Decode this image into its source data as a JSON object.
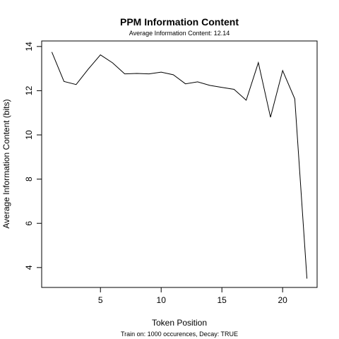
{
  "chart_data": {
    "type": "line",
    "title": "PPM Information Content",
    "subtitle": "Average Information Content: 12.14",
    "xlabel": "Token Position",
    "ylabel": "Average Information Content (bits)",
    "footnote": "Train on: 1000 occurences, Decay: TRUE",
    "xlim": [
      0.16,
      22.84
    ],
    "ylim": [
      3.1,
      14.25
    ],
    "xticks": [
      5,
      10,
      15,
      20
    ],
    "yticks": [
      4,
      6,
      8,
      10,
      12,
      14
    ],
    "grid": false,
    "x": [
      1,
      2,
      3,
      4,
      5,
      6,
      7,
      8,
      9,
      10,
      11,
      12,
      13,
      14,
      15,
      16,
      17,
      18,
      19,
      20,
      21,
      22
    ],
    "y": [
      13.75,
      12.42,
      12.28,
      12.98,
      13.62,
      13.26,
      12.76,
      12.78,
      12.76,
      12.84,
      12.72,
      12.31,
      12.4,
      12.24,
      12.15,
      12.06,
      11.57,
      13.27,
      10.8,
      12.91,
      11.63,
      3.5
    ]
  }
}
